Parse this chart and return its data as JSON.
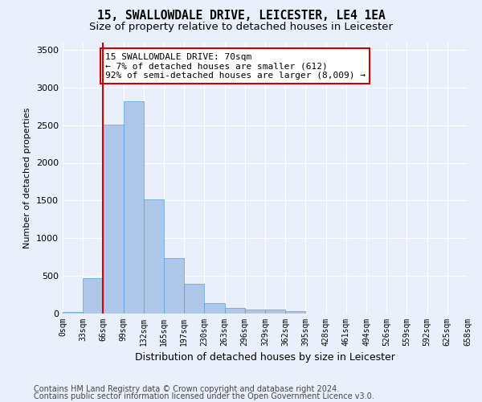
{
  "title": "15, SWALLOWDALE DRIVE, LEICESTER, LE4 1EA",
  "subtitle": "Size of property relative to detached houses in Leicester",
  "xlabel": "Distribution of detached houses by size in Leicester",
  "ylabel": "Number of detached properties",
  "bar_values": [
    20,
    470,
    2510,
    2820,
    1510,
    740,
    390,
    140,
    75,
    55,
    55,
    30,
    0,
    0,
    0,
    0,
    0,
    0,
    0,
    0
  ],
  "bin_labels": [
    "0sqm",
    "33sqm",
    "66sqm",
    "99sqm",
    "132sqm",
    "165sqm",
    "197sqm",
    "230sqm",
    "263sqm",
    "296sqm",
    "329sqm",
    "362sqm",
    "395sqm",
    "428sqm",
    "461sqm",
    "494sqm",
    "526sqm",
    "559sqm",
    "592sqm",
    "625sqm",
    "658sqm"
  ],
  "bar_color": "#aec6e8",
  "bar_edge_color": "#5a9fd4",
  "vline_color": "#cc0000",
  "vline_x": 2.0,
  "annotation_text": "15 SWALLOWDALE DRIVE: 70sqm\n← 7% of detached houses are smaller (612)\n92% of semi-detached houses are larger (8,009) →",
  "annotation_box_color": "#ffffff",
  "annotation_box_edge_color": "#cc0000",
  "ylim": [
    0,
    3600
  ],
  "yticks": [
    0,
    500,
    1000,
    1500,
    2000,
    2500,
    3000,
    3500
  ],
  "bg_color": "#eaf0fb",
  "plot_bg_color": "#eaf0fb",
  "footer_line1": "Contains HM Land Registry data © Crown copyright and database right 2024.",
  "footer_line2": "Contains public sector information licensed under the Open Government Licence v3.0.",
  "title_fontsize": 10.5,
  "subtitle_fontsize": 9.5,
  "annotation_fontsize": 8,
  "footer_fontsize": 7,
  "ylabel_fontsize": 8,
  "xlabel_fontsize": 9
}
